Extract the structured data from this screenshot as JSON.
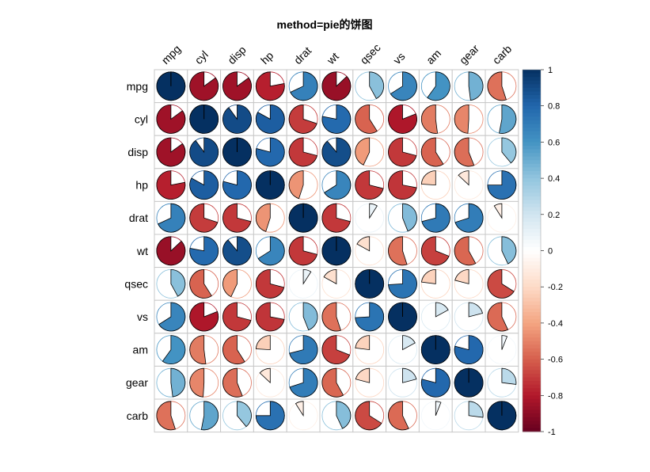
{
  "chart_data": {
    "type": "heatmap",
    "subtype": "correlation-pie",
    "title": "method=pie的饼图",
    "variables": [
      "mpg",
      "cyl",
      "disp",
      "hp",
      "drat",
      "wt",
      "qsec",
      "vs",
      "am",
      "gear",
      "carb"
    ],
    "matrix": [
      [
        1,
        -0.85,
        -0.85,
        -0.78,
        0.68,
        -0.87,
        0.42,
        0.66,
        0.6,
        0.48,
        -0.55
      ],
      [
        -0.85,
        1,
        0.9,
        0.83,
        -0.7,
        0.78,
        -0.59,
        -0.81,
        -0.52,
        -0.49,
        0.53
      ],
      [
        -0.85,
        0.9,
        1,
        0.79,
        -0.71,
        0.89,
        -0.43,
        -0.71,
        -0.59,
        -0.56,
        0.39
      ],
      [
        -0.78,
        0.83,
        0.79,
        1,
        -0.45,
        0.66,
        -0.71,
        -0.72,
        -0.24,
        -0.13,
        0.75
      ],
      [
        0.68,
        -0.7,
        -0.71,
        -0.45,
        1,
        -0.71,
        0.09,
        0.44,
        0.71,
        0.7,
        -0.09
      ],
      [
        -0.87,
        0.78,
        0.89,
        0.66,
        -0.71,
        1,
        -0.17,
        -0.55,
        -0.69,
        -0.58,
        0.43
      ],
      [
        0.42,
        -0.59,
        -0.43,
        -0.71,
        0.09,
        -0.17,
        1,
        0.74,
        -0.23,
        -0.21,
        -0.66
      ],
      [
        0.66,
        -0.81,
        -0.71,
        -0.72,
        0.44,
        -0.55,
        0.74,
        1,
        0.17,
        0.21,
        -0.57
      ],
      [
        0.6,
        -0.52,
        -0.59,
        -0.24,
        0.71,
        -0.69,
        -0.23,
        0.17,
        1,
        0.79,
        0.06
      ],
      [
        0.48,
        -0.49,
        -0.56,
        -0.13,
        0.7,
        -0.58,
        -0.21,
        0.21,
        0.79,
        1,
        0.27
      ],
      [
        -0.55,
        0.53,
        0.39,
        0.75,
        -0.09,
        0.43,
        -0.66,
        -0.57,
        0.06,
        0.27,
        1
      ]
    ],
    "colorbar": {
      "range": [
        -1,
        1
      ],
      "ticks": [
        "1",
        "0.8",
        "0.6",
        "0.4",
        "0.2",
        "0",
        "-0.2",
        "-0.4",
        "-0.6",
        "-0.8",
        "-1"
      ],
      "tick_values": [
        1,
        0.8,
        0.6,
        0.4,
        0.2,
        0,
        -0.2,
        -0.4,
        -0.6,
        -0.8,
        -1
      ]
    },
    "palette": [
      "#67001F",
      "#B2182B",
      "#D6604D",
      "#F4A582",
      "#FDDBC7",
      "#FFFFFF",
      "#D1E5F0",
      "#92C5DE",
      "#4393C3",
      "#2166AC",
      "#053061"
    ]
  }
}
